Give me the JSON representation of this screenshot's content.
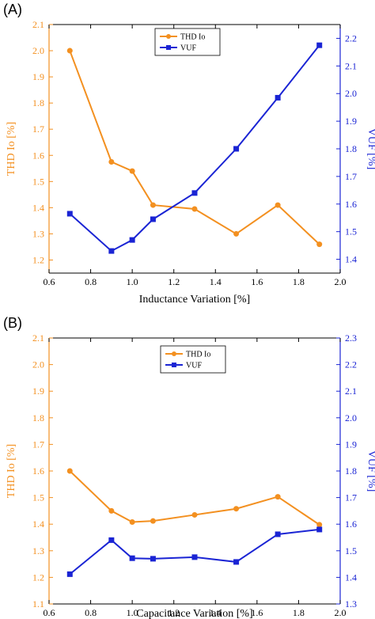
{
  "colors": {
    "thd": "#f39020",
    "vuf": "#1a24d4",
    "axis": "#000000"
  },
  "chart_data": [
    {
      "panel_label": "(A)",
      "type": "line",
      "xlabel": "Inductance Variation [%]",
      "ylabel_left": "THD Io [%]",
      "ylabel_right": "VUF [%]",
      "xlim": [
        0.6,
        2.0
      ],
      "ylim_left": [
        1.15,
        2.1
      ],
      "ylim_right": [
        1.35,
        2.25
      ],
      "xticks": [
        "0.6",
        "0.8",
        "1.0",
        "1.2",
        "1.4",
        "1.6",
        "1.8",
        "2.0"
      ],
      "yticks_left": [
        "1.2",
        "1.3",
        "1.4",
        "1.5",
        "1.6",
        "1.7",
        "1.8",
        "1.9",
        "2.0",
        "2.1"
      ],
      "yticks_right": [
        "1.4",
        "1.5",
        "1.6",
        "1.7",
        "1.8",
        "1.9",
        "2.0",
        "2.1",
        "2.2"
      ],
      "legend_position": "top-center",
      "series": [
        {
          "name": "THD Io",
          "axis": "left",
          "marker": "circle",
          "x": [
            0.7,
            0.9,
            1.0,
            1.1,
            1.3,
            1.5,
            1.7,
            1.9
          ],
          "y": [
            2.0,
            1.575,
            1.54,
            1.41,
            1.395,
            1.3,
            1.41,
            1.26
          ]
        },
        {
          "name": "VUF",
          "axis": "right",
          "marker": "square",
          "x": [
            0.7,
            0.9,
            1.0,
            1.1,
            1.3,
            1.5,
            1.7,
            1.9
          ],
          "y": [
            1.565,
            1.43,
            1.47,
            1.545,
            1.64,
            1.8,
            1.985,
            2.175
          ]
        }
      ]
    },
    {
      "panel_label": "(B)",
      "type": "line",
      "xlabel": "Capacitance Variation [%]",
      "ylabel_left": "THD Io [%]",
      "ylabel_right": "VUF [%]",
      "xlim": [
        0.6,
        2.0
      ],
      "ylim_left": [
        1.1,
        2.1
      ],
      "ylim_right": [
        1.3,
        2.3
      ],
      "xticks": [
        "0.6",
        "0.8",
        "1.0",
        "1.2",
        "1.4",
        "1.6",
        "1.8",
        "2.0"
      ],
      "yticks_left": [
        "1.1",
        "1.2",
        "1.3",
        "1.4",
        "1.5",
        "1.6",
        "1.7",
        "1.8",
        "1.9",
        "2.0",
        "2.1"
      ],
      "yticks_right": [
        "1.3",
        "1.4",
        "1.5",
        "1.6",
        "1.7",
        "1.8",
        "1.9",
        "2.0",
        "2.1",
        "2.2",
        "2.3"
      ],
      "legend_position": "top-center",
      "series": [
        {
          "name": "THD Io",
          "axis": "left",
          "marker": "circle",
          "x": [
            0.7,
            0.9,
            1.0,
            1.1,
            1.3,
            1.5,
            1.7,
            1.9
          ],
          "y": [
            1.6,
            1.45,
            1.408,
            1.412,
            1.435,
            1.458,
            1.503,
            1.398
          ]
        },
        {
          "name": "VUF",
          "axis": "right",
          "marker": "square",
          "x": [
            0.7,
            0.9,
            1.0,
            1.1,
            1.3,
            1.5,
            1.7,
            1.9
          ],
          "y": [
            1.412,
            1.54,
            1.472,
            1.47,
            1.476,
            1.458,
            1.562,
            1.58
          ]
        }
      ]
    }
  ]
}
